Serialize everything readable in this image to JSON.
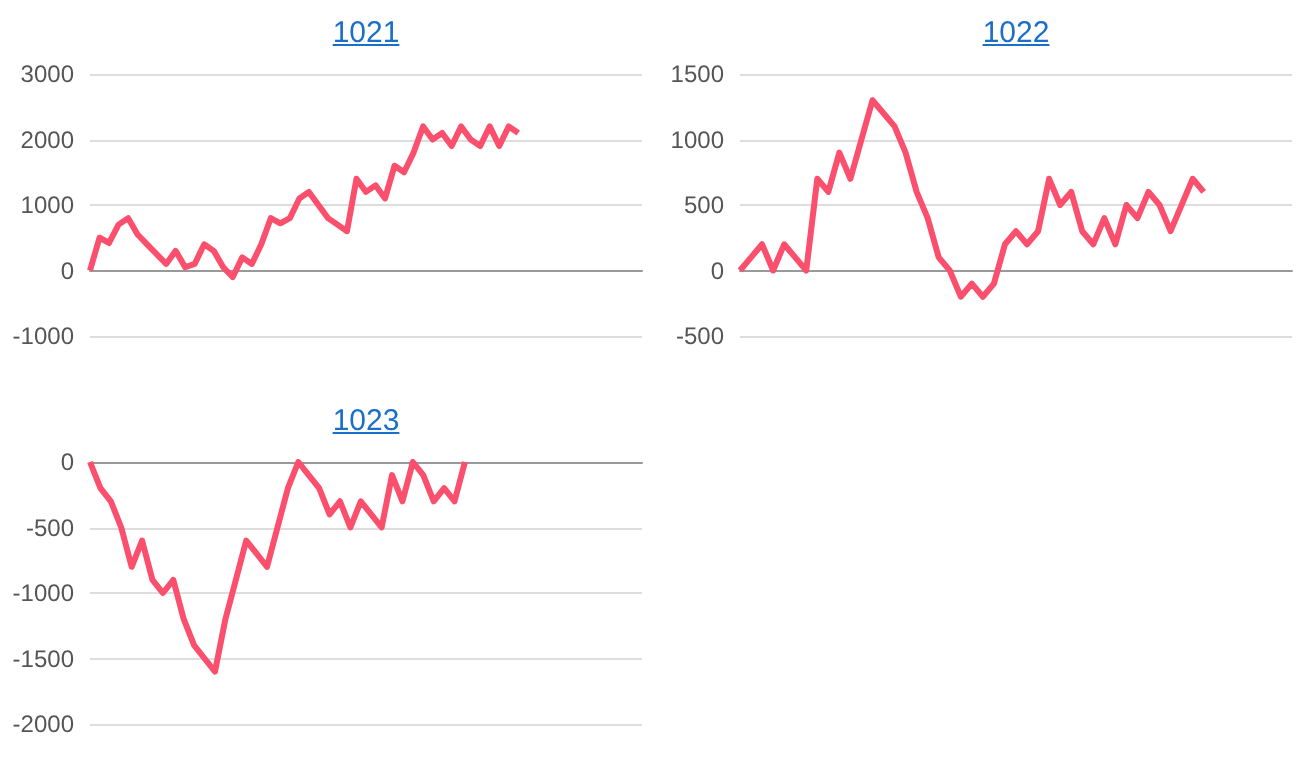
{
  "chart_data": [
    {
      "type": "line",
      "title": "1021",
      "categories": [
        null,
        null,
        null,
        null,
        null,
        null,
        null,
        null,
        null,
        null,
        null,
        null,
        null,
        null,
        null,
        null,
        null,
        null,
        null,
        null,
        null,
        null,
        null,
        null,
        null,
        null,
        null,
        null,
        null,
        null,
        null,
        null,
        null,
        null,
        null,
        null,
        null,
        null,
        null,
        null,
        null,
        null,
        null,
        null,
        null,
        null,
        null,
        null,
        null,
        null,
        null,
        null,
        null,
        null,
        null,
        null,
        null,
        null,
        null
      ],
      "series": [
        {
          "color": "#fb4f6e",
          "values": [
            0,
            500,
            420,
            700,
            800,
            550,
            400,
            250,
            100,
            300,
            50,
            100,
            400,
            300,
            50,
            -100,
            200,
            100,
            400,
            800,
            720,
            800,
            1100,
            1200,
            1000,
            800,
            700,
            600,
            1400,
            1200,
            1300,
            1100,
            1600,
            1500,
            1800,
            2200,
            2000,
            2100,
            1900,
            2200,
            2000,
            1900,
            2200,
            1900,
            2200,
            2100,
            null,
            null,
            null,
            null,
            null,
            null,
            null,
            null,
            null,
            null,
            null,
            null,
            null
          ]
        }
      ],
      "ylim": [
        -1000,
        3000
      ],
      "yticks": [
        -1000,
        0,
        1000,
        2000,
        3000
      ],
      "grid": "y",
      "line_style": "solid",
      "tick_labels": "y"
    },
    {
      "type": "line",
      "title": "1022",
      "categories": [
        null,
        null,
        null,
        null,
        null,
        null,
        null,
        null,
        null,
        null,
        null,
        null,
        null,
        null,
        null,
        null,
        null,
        null,
        null,
        null,
        null,
        null,
        null,
        null,
        null,
        null,
        null,
        null,
        null,
        null,
        null,
        null,
        null,
        null,
        null,
        null,
        null,
        null,
        null,
        null,
        null,
        null,
        null,
        null,
        null,
        null,
        null,
        null,
        null,
        null,
        null
      ],
      "series": [
        {
          "color": "#fb4f6e",
          "values": [
            0,
            100,
            200,
            0,
            200,
            100,
            0,
            700,
            600,
            900,
            700,
            1000,
            1300,
            1200,
            1100,
            900,
            600,
            400,
            100,
            0,
            -200,
            -100,
            -200,
            -100,
            200,
            300,
            200,
            300,
            700,
            500,
            600,
            300,
            200,
            400,
            200,
            500,
            400,
            600,
            500,
            300,
            500,
            700,
            600,
            null,
            null,
            null,
            null,
            null,
            null,
            null,
            null
          ]
        }
      ],
      "ylim": [
        -500,
        1500
      ],
      "yticks": [
        -500,
        0,
        500,
        1000,
        1500
      ],
      "grid": "y",
      "line_style": "solid",
      "tick_labels": "y"
    },
    {
      "type": "line",
      "title": "1023",
      "categories": [
        null,
        null,
        null,
        null,
        null,
        null,
        null,
        null,
        null,
        null,
        null,
        null,
        null,
        null,
        null,
        null,
        null,
        null,
        null,
        null,
        null,
        null,
        null,
        null,
        null,
        null,
        null,
        null,
        null,
        null,
        null,
        null,
        null,
        null,
        null,
        null,
        null,
        null,
        null,
        null,
        null,
        null,
        null,
        null,
        null,
        null,
        null,
        null,
        null,
        null,
        null,
        null,
        null,
        null
      ],
      "series": [
        {
          "color": "#fb4f6e",
          "values": [
            0,
            -200,
            -300,
            -500,
            -800,
            -600,
            -900,
            -1000,
            -900,
            -1200,
            -1400,
            -1500,
            -1600,
            -1200,
            -900,
            -600,
            -700,
            -800,
            -500,
            -200,
            0,
            -100,
            -200,
            -400,
            -300,
            -500,
            -300,
            -400,
            -500,
            -100,
            -300,
            0,
            -100,
            -300,
            -200,
            -300,
            0,
            null,
            null,
            null,
            null,
            null,
            null,
            null,
            null,
            null,
            null,
            null,
            null,
            null,
            null,
            null,
            null,
            null
          ]
        }
      ],
      "ylim": [
        -2000,
        0
      ],
      "yticks": [
        -2000,
        -1500,
        -1000,
        -500,
        0
      ],
      "grid": "y",
      "line_style": "solid",
      "tick_labels": "y"
    }
  ]
}
